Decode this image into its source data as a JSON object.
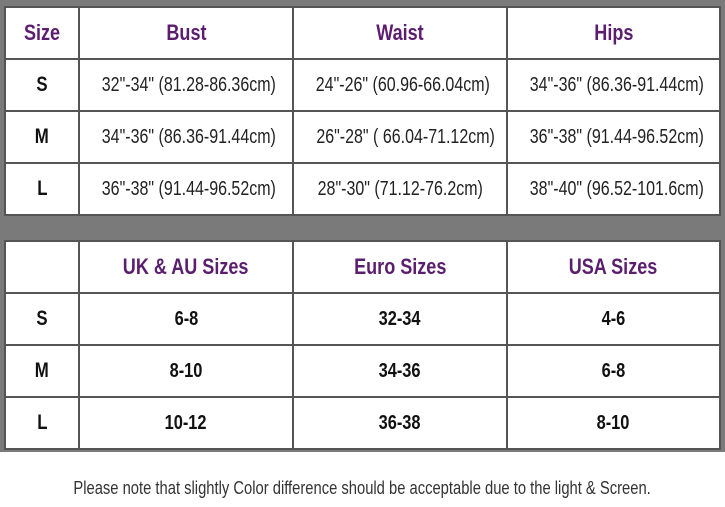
{
  "measurements": {
    "headers": [
      "Size",
      "Bust",
      "Waist",
      "Hips"
    ],
    "rows": [
      [
        "S",
        "32\"-34\" (81.28-86.36cm)",
        "24\"-26\" (60.96-66.04cm)",
        "34\"-36\" (86.36-91.44cm)"
      ],
      [
        "M",
        "34\"-36\" (86.36-91.44cm)",
        "26\"-28\" ( 66.04-71.12cm)",
        "36\"-38\" (91.44-96.52cm)"
      ],
      [
        "L",
        "36\"-38\" (91.44-96.52cm)",
        "28\"-30\" (71.12-76.2cm)",
        "38\"-40\" (96.52-101.6cm)"
      ]
    ]
  },
  "conversions": {
    "headers": [
      "",
      "UK & AU Sizes",
      "Euro Sizes",
      "USA Sizes"
    ],
    "rows": [
      [
        "S",
        "6-8",
        "32-34",
        "4-6"
      ],
      [
        "M",
        "8-10",
        "34-36",
        "6-8"
      ],
      [
        "L",
        "10-12",
        "36-38",
        "8-10"
      ]
    ]
  },
  "note": "Please note that slightly Color difference should be acceptable due to the light & Screen.",
  "colors": {
    "header_text": "#5b1d6e",
    "frame": "#7a7a7a"
  }
}
